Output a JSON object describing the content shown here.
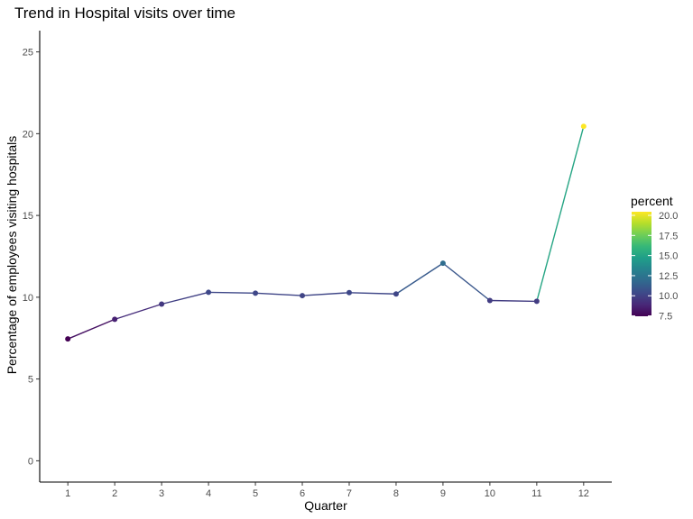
{
  "chart_data": {
    "type": "line",
    "title": "Trend in Hospital visits over time",
    "xlabel": "Quarter",
    "ylabel": "Percentage of employees visiting hospitals",
    "x": [
      1,
      2,
      3,
      4,
      5,
      6,
      7,
      8,
      9,
      10,
      11,
      12
    ],
    "x_tick_labels": [
      "1",
      "2",
      "3",
      "4",
      "5",
      "6",
      "7",
      "8",
      "9",
      "10",
      "11",
      "12"
    ],
    "values": [
      7.45,
      8.65,
      9.58,
      10.3,
      10.25,
      10.1,
      10.28,
      10.2,
      12.08,
      9.8,
      9.75,
      20.45
    ],
    "xlim": [
      0.4,
      12.6
    ],
    "ylim": [
      -1.3,
      26.3
    ],
    "y_ticks": [
      0,
      5,
      10,
      15,
      20,
      25
    ],
    "y_tick_labels": [
      "0",
      "5",
      "10",
      "15",
      "20",
      "25"
    ],
    "grid": false,
    "color_scale": {
      "title": "percent",
      "palette": "viridis",
      "min": 7.45,
      "max": 20.45,
      "colors": [
        "#440154",
        "#482878",
        "#3e4989",
        "#31688e",
        "#26828e",
        "#1f9e89",
        "#35b779",
        "#6ece58",
        "#b5de2b",
        "#fde725"
      ],
      "ticks": [
        7.5,
        10.0,
        12.5,
        15.0,
        17.5,
        20.0
      ],
      "tick_labels": [
        "7.5",
        "10.0",
        "12.5",
        "15.0",
        "17.5",
        "20.0"
      ],
      "position": "right"
    }
  }
}
